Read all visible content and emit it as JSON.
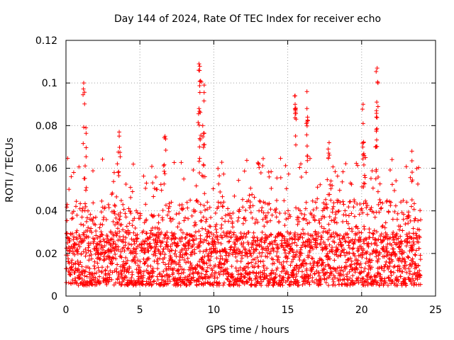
{
  "chart_data": {
    "type": "scatter",
    "title": "Day 144 of 2024, Rate Of TEC Index for receiver echo",
    "xlabel": "GPS time / hours",
    "ylabel": "ROTI / TECUs",
    "xlim": [
      0,
      25
    ],
    "ylim": [
      0,
      0.12
    ],
    "xticks": [
      0,
      5,
      10,
      15,
      20,
      25
    ],
    "xtick_labels": [
      "0",
      "5",
      "10",
      "15",
      "20",
      "25"
    ],
    "yticks": [
      0,
      0.02,
      0.04,
      0.06,
      0.08,
      0.1,
      0.12
    ],
    "ytick_labels": [
      "0",
      "0.02",
      "0.04",
      "0.06",
      "0.08",
      "0.1",
      "0.12"
    ],
    "grid": true,
    "marker": "plus",
    "color": "#ff0000",
    "series": [
      {
        "name": "ROTI",
        "x_range": [
          0,
          24
        ],
        "typical_range": [
          0.005,
          0.03
        ],
        "notable_peaks": [
          {
            "x": 1.2,
            "y": 0.1
          },
          {
            "x": 1.35,
            "y": 0.079
          },
          {
            "x": 3.6,
            "y": 0.077
          },
          {
            "x": 6.7,
            "y": 0.075
          },
          {
            "x": 9.0,
            "y": 0.109
          },
          {
            "x": 9.1,
            "y": 0.101
          },
          {
            "x": 9.35,
            "y": 0.099
          },
          {
            "x": 9.0,
            "y": 0.088
          },
          {
            "x": 9.25,
            "y": 0.08
          },
          {
            "x": 15.5,
            "y": 0.094
          },
          {
            "x": 15.5,
            "y": 0.09
          },
          {
            "x": 16.3,
            "y": 0.096
          },
          {
            "x": 16.3,
            "y": 0.088
          },
          {
            "x": 17.8,
            "y": 0.072
          },
          {
            "x": 20.1,
            "y": 0.09
          },
          {
            "x": 20.1,
            "y": 0.081
          },
          {
            "x": 21.05,
            "y": 0.107
          },
          {
            "x": 21.0,
            "y": 0.087
          },
          {
            "x": 21.0,
            "y": 0.084
          },
          {
            "x": 23.4,
            "y": 0.068
          }
        ]
      }
    ]
  }
}
